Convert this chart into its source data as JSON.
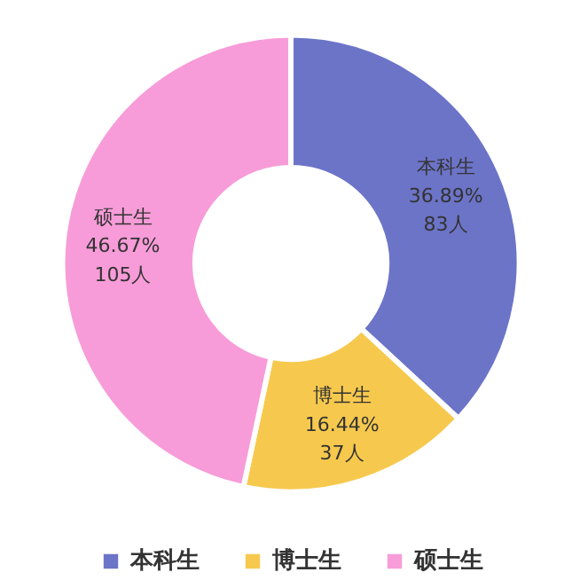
{
  "chart_data": {
    "type": "donut",
    "categories": [
      "本科生",
      "博士生",
      "硕士生"
    ],
    "values": [
      36.89,
      16.44,
      46.67
    ],
    "value_labels": [
      "36.89%\n83人",
      "16.44%\n37人",
      "46.67%\n105人"
    ],
    "colors": [
      "#6c74c8",
      "#f6c94e",
      "#f79cd8"
    ],
    "legend": "bottom"
  }
}
